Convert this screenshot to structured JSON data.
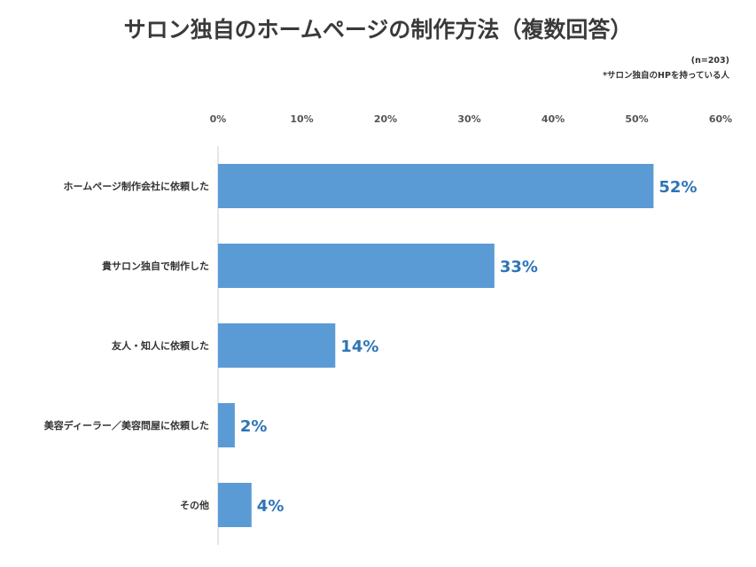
{
  "title": "サロン独自のホームページの制作方法（複数回答）",
  "sample_note": "(n=203)",
  "scope_note": "*サロン独自のHPを持っている人",
  "colors": {
    "bar": "#5b9bd5",
    "label": "#2e75b6",
    "axis": "#cccccc",
    "text": "#555555"
  },
  "chart_data": {
    "type": "bar",
    "orientation": "horizontal",
    "categories": [
      "ホームページ制作会社に依頼した",
      "貴サロン独自で制作した",
      "友人・知人に依頼した",
      "美容ディーラー／美容問屋に依頼した",
      "その他"
    ],
    "values": [
      52,
      33,
      14,
      2,
      4
    ],
    "value_labels": [
      "52%",
      "33%",
      "14%",
      "2%",
      "4%"
    ],
    "xlim": [
      0,
      60
    ],
    "xticks": [
      0,
      10,
      20,
      30,
      40,
      50,
      60
    ],
    "xtick_labels": [
      "0%",
      "10%",
      "20%",
      "30%",
      "40%",
      "50%",
      "60%"
    ],
    "grid": false
  }
}
